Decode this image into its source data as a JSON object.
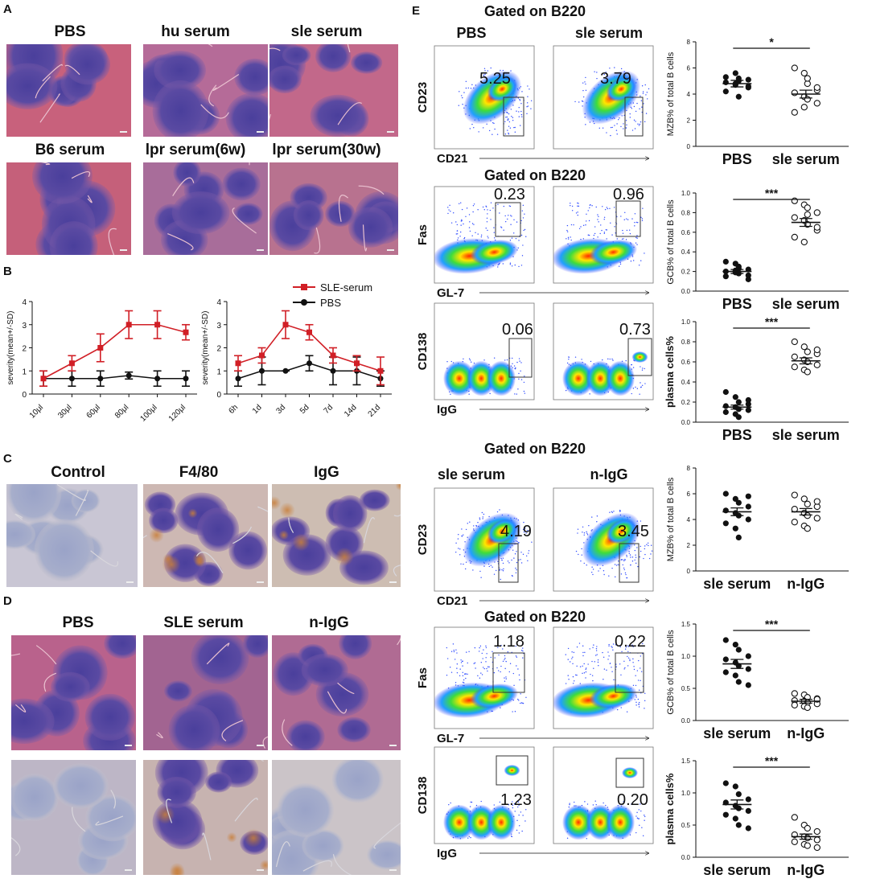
{
  "panels": {
    "A": {
      "letter": "A",
      "headers": [
        "PBS",
        "hu serum",
        "sle serum",
        "B6 serum",
        "lpr serum(6w)",
        "lpr serum(30w)"
      ],
      "colors": [
        "#c8617c",
        "#b56b98",
        "#c2688a",
        "#c5607a",
        "#a86d9a",
        "#b8728f"
      ]
    },
    "B": {
      "letter": "B",
      "legend": [
        "SLE-serum",
        "PBS"
      ],
      "colors": {
        "sle": "#d11f26",
        "pbs": "#111111"
      }
    },
    "C": {
      "letter": "C",
      "headers": [
        "Control",
        "F4/80",
        "IgG"
      ]
    },
    "D": {
      "letter": "D",
      "headers": [
        "PBS",
        "SLE serum",
        "n-IgG"
      ]
    },
    "E": {
      "letter": "E",
      "gate_titles": [
        "Gated on B220",
        "Gated on B220",
        "Gated on B220",
        "Gated on B220"
      ],
      "col_headers_top": [
        "PBS",
        "sle serum"
      ],
      "col_headers_bottom": [
        "sle serum",
        "n-IgG"
      ],
      "rows": [
        {
          "y_label": "CD23",
          "x_label": "CD21",
          "values": [
            "5.25",
            "3.79"
          ]
        },
        {
          "y_label": "Fas",
          "x_label": "GL-7",
          "values": [
            "0.23",
            "0.96"
          ]
        },
        {
          "y_label": "CD138",
          "x_label": "IgG",
          "values": [
            "0.06",
            "0.73"
          ]
        },
        {
          "y_label": "CD23",
          "x_label": "CD21",
          "values": [
            "4.19",
            "3.45"
          ]
        },
        {
          "y_label": "Fas",
          "x_label": "GL-7",
          "values": [
            "1.18",
            "0.22"
          ]
        },
        {
          "y_label": "CD138",
          "x_label": "IgG",
          "values": [
            "1.23",
            "0.20"
          ]
        }
      ]
    }
  },
  "chart_data": [
    {
      "id": "B-left",
      "type": "line",
      "ylabel": "severity(mean+/-SD)",
      "categories": [
        "10μl",
        "30μl",
        "60μl",
        "80μl",
        "100μl",
        "120μl"
      ],
      "ylim": [
        0,
        4
      ],
      "yticks": [
        "0",
        "1",
        "2",
        "3",
        "4"
      ],
      "series": [
        {
          "name": "SLE-serum",
          "values": [
            0.67,
            1.33,
            2.0,
            3.0,
            3.0,
            2.67
          ],
          "err": [
            0.33,
            0.33,
            0.6,
            0.6,
            0.6,
            0.33
          ]
        },
        {
          "name": "PBS",
          "values": [
            0.67,
            0.67,
            0.67,
            0.8,
            0.67,
            0.67
          ],
          "err": [
            0.33,
            0.33,
            0.33,
            0.15,
            0.33,
            0.33
          ]
        }
      ]
    },
    {
      "id": "B-right",
      "type": "line",
      "ylabel": "severity(mean+/-SD)",
      "categories": [
        "6h",
        "1d",
        "3d",
        "5d",
        "7d",
        "14d",
        "21d"
      ],
      "ylim": [
        0,
        4
      ],
      "yticks": [
        "0",
        "1",
        "2",
        "3",
        "4"
      ],
      "series": [
        {
          "name": "SLE-serum",
          "values": [
            1.33,
            1.67,
            3.0,
            2.67,
            1.67,
            1.33,
            1.0
          ],
          "err": [
            0.33,
            0.33,
            0.6,
            0.33,
            0.33,
            0.33,
            0.6
          ]
        },
        {
          "name": "PBS",
          "values": [
            0.67,
            1.0,
            1.0,
            1.33,
            1.0,
            1.0,
            0.67
          ],
          "err": [
            0.33,
            0.6,
            0.0,
            0.33,
            0.6,
            0.6,
            0.33
          ]
        }
      ]
    },
    {
      "id": "E-mzb-1",
      "type": "scatter",
      "ylabel": "MZB% of total B cells",
      "categories": [
        "PBS",
        "sle serum"
      ],
      "ylim": [
        0,
        8
      ],
      "yticks": [
        "0",
        "2",
        "4",
        "6",
        "8"
      ],
      "sig": "*",
      "groups": [
        {
          "name": "PBS",
          "mean": 4.8,
          "sem": 0.25,
          "points": [
            5.3,
            5.6,
            5.0,
            4.5,
            4.2,
            4.8,
            5.2,
            4.6,
            4.9,
            4.7,
            3.8,
            5.1
          ]
        },
        {
          "name": "sle serum",
          "mean": 4.0,
          "sem": 0.3,
          "points": [
            6.0,
            5.6,
            4.8,
            4.3,
            4.1,
            3.8,
            3.6,
            3.3,
            2.6,
            3.0,
            5.2,
            4.5
          ]
        }
      ]
    },
    {
      "id": "E-gcb-1",
      "type": "scatter",
      "ylabel": "GCB% of total B cells",
      "categories": [
        "PBS",
        "sle serum"
      ],
      "ylim": [
        0,
        1.0
      ],
      "yticks": [
        "0.0",
        "0.2",
        "0.4",
        "0.6",
        "0.8",
        "1.0"
      ],
      "sig": "***",
      "groups": [
        {
          "name": "PBS",
          "mean": 0.2,
          "sem": 0.02,
          "points": [
            0.3,
            0.28,
            0.25,
            0.22,
            0.2,
            0.21,
            0.18,
            0.16,
            0.15,
            0.19,
            0.23,
            0.12
          ]
        },
        {
          "name": "sle serum",
          "mean": 0.7,
          "sem": 0.04,
          "points": [
            0.92,
            0.88,
            0.85,
            0.8,
            0.75,
            0.72,
            0.68,
            0.62,
            0.55,
            0.5,
            0.78,
            0.65
          ]
        }
      ]
    },
    {
      "id": "E-plasma-1",
      "type": "scatter",
      "ylabel": "plasma cells%",
      "categories": [
        "PBS",
        "sle serum"
      ],
      "ylim": [
        0,
        1.0
      ],
      "yticks": [
        "0.0",
        "0.2",
        "0.4",
        "0.6",
        "0.8",
        "1.0"
      ],
      "sig": "***",
      "groups": [
        {
          "name": "PBS",
          "mean": 0.15,
          "sem": 0.02,
          "points": [
            0.3,
            0.25,
            0.2,
            0.18,
            0.16,
            0.15,
            0.13,
            0.12,
            0.1,
            0.08,
            0.05,
            0.22
          ]
        },
        {
          "name": "sle serum",
          "mean": 0.61,
          "sem": 0.03,
          "points": [
            0.8,
            0.75,
            0.7,
            0.68,
            0.65,
            0.62,
            0.6,
            0.57,
            0.55,
            0.52,
            0.5,
            0.72
          ]
        }
      ]
    },
    {
      "id": "E-mzb-2",
      "type": "scatter",
      "ylabel": "MZB% of total B cells",
      "categories": [
        "sle serum",
        "n-IgG"
      ],
      "ylim": [
        0,
        8
      ],
      "yticks": [
        "0",
        "2",
        "4",
        "6",
        "8"
      ],
      "sig": "",
      "groups": [
        {
          "name": "sle serum",
          "mean": 4.6,
          "sem": 0.3,
          "points": [
            6.0,
            5.6,
            5.3,
            5.0,
            4.7,
            4.5,
            4.3,
            4.0,
            3.7,
            3.3,
            2.6,
            5.8
          ]
        },
        {
          "name": "n-IgG",
          "mean": 4.6,
          "sem": 0.25,
          "points": [
            5.9,
            5.6,
            5.2,
            5.0,
            4.8,
            4.5,
            4.3,
            4.1,
            3.8,
            3.5,
            3.3,
            5.4
          ]
        }
      ]
    },
    {
      "id": "E-gcb-2",
      "type": "scatter",
      "ylabel": "GCB% of total B cells",
      "categories": [
        "sle serum",
        "n-IgG"
      ],
      "ylim": [
        0,
        1.5
      ],
      "yticks": [
        "0.0",
        "0.5",
        "1.0",
        "1.5"
      ],
      "sig": "***",
      "groups": [
        {
          "name": "sle serum",
          "mean": 0.88,
          "sem": 0.07,
          "points": [
            1.25,
            1.18,
            1.1,
            1.0,
            0.95,
            0.9,
            0.85,
            0.8,
            0.75,
            0.7,
            0.6,
            0.55
          ]
        },
        {
          "name": "n-IgG",
          "mean": 0.3,
          "sem": 0.03,
          "points": [
            0.42,
            0.4,
            0.36,
            0.34,
            0.31,
            0.3,
            0.28,
            0.26,
            0.24,
            0.22,
            0.2,
            0.33
          ]
        }
      ]
    },
    {
      "id": "E-plasma-2",
      "type": "scatter",
      "ylabel": "plasma cells%",
      "categories": [
        "sle serum",
        "n-IgG"
      ],
      "ylim": [
        0,
        1.5
      ],
      "yticks": [
        "0.0",
        "0.5",
        "1.0",
        "1.5"
      ],
      "sig": "***",
      "groups": [
        {
          "name": "sle serum",
          "mean": 0.82,
          "sem": 0.07,
          "points": [
            1.15,
            1.1,
            0.98,
            0.9,
            0.85,
            0.8,
            0.76,
            0.72,
            0.66,
            0.6,
            0.5,
            0.45
          ]
        },
        {
          "name": "n-IgG",
          "mean": 0.32,
          "sem": 0.04,
          "points": [
            0.62,
            0.5,
            0.45,
            0.4,
            0.35,
            0.32,
            0.3,
            0.27,
            0.24,
            0.2,
            0.18,
            0.15
          ]
        }
      ]
    }
  ]
}
